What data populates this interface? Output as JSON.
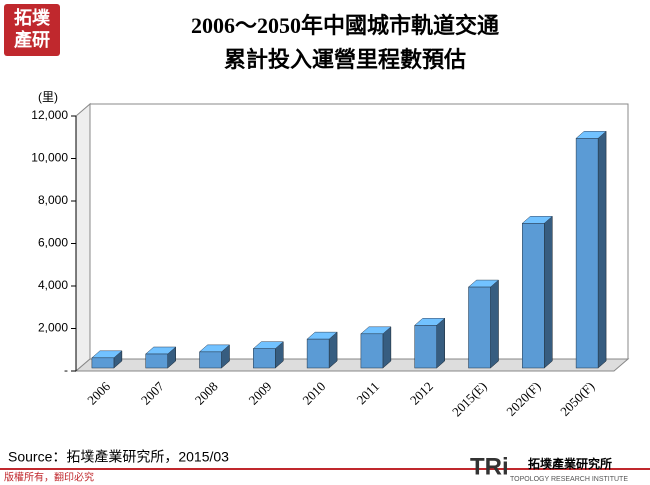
{
  "logo": [
    "拓墣",
    "產研"
  ],
  "chart_data": {
    "type": "bar3d",
    "title": [
      "2006～2050年中國城市軌道交通",
      "累計投入運營里程數預估"
    ],
    "y_unit": "(里)",
    "categories": [
      "2006",
      "2007",
      "2008",
      "2009",
      "2010",
      "2011",
      "2012",
      "2015(E)",
      "2020(F)",
      "2050(F)"
    ],
    "values": [
      620,
      800,
      900,
      1050,
      1500,
      1750,
      2150,
      3950,
      6950,
      10950
    ],
    "color": "#5b9bd5",
    "ylim": [
      0,
      12000
    ],
    "yticks": [
      {
        "value": 0,
        "label": "-"
      },
      {
        "value": 2000,
        "label": "2,000"
      },
      {
        "value": 4000,
        "label": "4,000"
      },
      {
        "value": 6000,
        "label": "6,000"
      },
      {
        "value": 8000,
        "label": "8,000"
      },
      {
        "value": 10000,
        "label": "10,000"
      },
      {
        "value": 12000,
        "label": "12,000"
      }
    ]
  },
  "source": "Source：拓墣產業研究所，2015/03",
  "footer": {
    "copyright": "版權所有，翻印必究",
    "brand": "TRi",
    "brand_name": "拓墣產業研究所",
    "brand_english": "TOPOLOGY RESEARCH INSTITUTE"
  }
}
